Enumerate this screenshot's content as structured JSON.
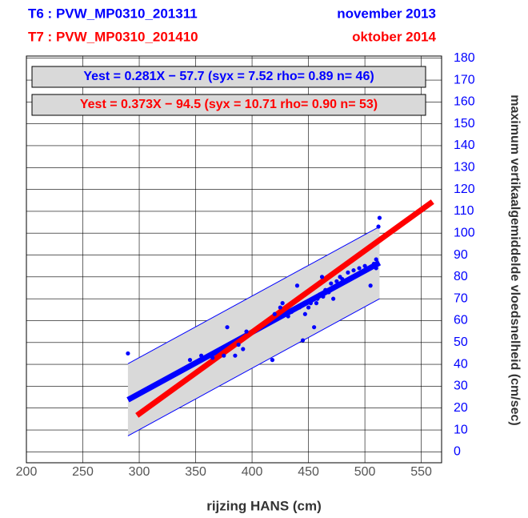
{
  "chart_data": {
    "type": "scatter",
    "headers": [
      {
        "left": "T6 : PVW_MP0310_201311",
        "right": "november 2013",
        "color": "#0000ff"
      },
      {
        "left": "T7 : PVW_MP0310_201410",
        "right": "oktober 2014",
        "color": "#ff0000"
      }
    ],
    "equations": [
      {
        "text": "Yest = 0.281X − 57.7 (syx = 7.52 rho= 0.89 n= 46)",
        "color": "#0000ff"
      },
      {
        "text": "Yest = 0.373X − 94.5 (syx = 10.71 rho= 0.90 n= 53)",
        "color": "#ff0000"
      }
    ],
    "x_label": "rijzing HANS (cm)",
    "y_label": "maximum vertikaalgemiddelde vloedsnelheid (cm/sec)",
    "xlim": [
      200,
      568
    ],
    "xticks": [
      200,
      250,
      300,
      350,
      400,
      450,
      500,
      550
    ],
    "ylim": [
      -5,
      181
    ],
    "yticks": [
      0,
      10,
      20,
      30,
      40,
      50,
      60,
      70,
      80,
      90,
      100,
      110,
      120,
      130,
      140,
      150,
      160,
      170,
      180
    ],
    "grid": true,
    "band": {
      "color": "#d9d9d9",
      "edge_color": "#0000ff",
      "x": [
        290,
        513
      ],
      "lower": [
        7.3,
        70
      ],
      "upper": [
        40.3,
        103
      ]
    },
    "series": [
      {
        "color": "#0000ff",
        "x": [
          290,
          330,
          345,
          355,
          365,
          375,
          378,
          385,
          388,
          392,
          395,
          418,
          420,
          425,
          427,
          432,
          435,
          440,
          442,
          445,
          447,
          450,
          452,
          455,
          457,
          458,
          460,
          462,
          463,
          465,
          468,
          470,
          472,
          475,
          478,
          480,
          485,
          490,
          495,
          500,
          505,
          508,
          510,
          510,
          512,
          513
        ],
        "values": [
          45,
          35,
          42,
          44,
          43,
          44,
          57,
          44,
          49,
          47,
          55,
          42,
          63,
          66,
          68,
          62,
          64,
          76,
          66,
          51,
          63,
          66,
          68,
          57,
          68,
          70,
          72,
          80,
          71,
          74,
          73,
          77,
          70,
          78,
          80,
          79,
          82,
          83,
          84,
          85,
          76,
          86,
          88,
          84,
          103,
          107
        ]
      }
    ],
    "fits": [
      {
        "color": "#0000ff",
        "x": [
          290,
          513
        ],
        "values": [
          23.79,
          86.45
        ]
      },
      {
        "color": "#ff0000",
        "x": [
          298,
          560
        ],
        "values": [
          16.65,
          114.38
        ]
      }
    ]
  }
}
